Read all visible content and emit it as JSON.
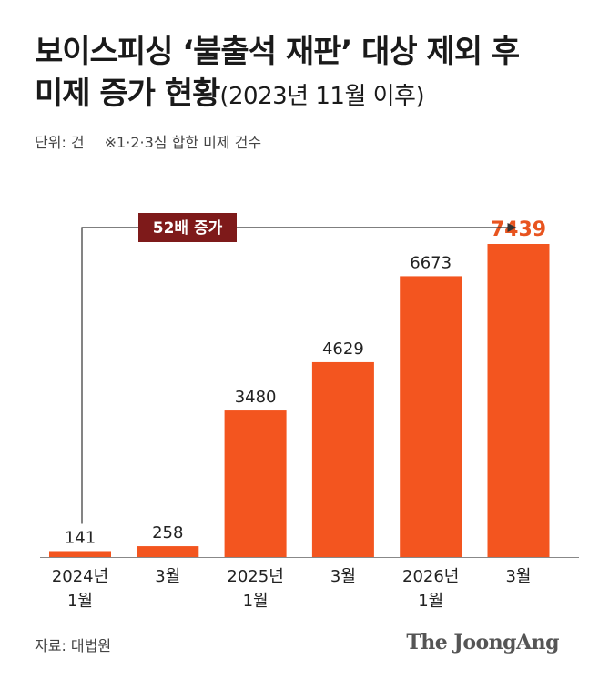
{
  "title": {
    "line1": "보이스피싱 ‘불출석 재판’ 대상 제외 후",
    "line2_main": "미제 증가 현황",
    "line2_sub": "(2023년 11월 이후)"
  },
  "unit_label": "단위: 건",
  "note": "※1·2·3심 합한 미제 건수",
  "source": "자료: 대법원",
  "logo": "The JoongAng",
  "colors": {
    "bar": "#f3551f",
    "highlight_label": "#e8541f",
    "badge_bg": "#7e1a1a",
    "badge_text": "#ffffff",
    "baseline": "#888888",
    "arrow": "#333333"
  },
  "chart_data": {
    "type": "bar",
    "categories": [
      [
        "2024년",
        "1월"
      ],
      [
        "3월"
      ],
      [
        "2025년",
        "1월"
      ],
      [
        "3월"
      ],
      [
        "2026년",
        "1월"
      ],
      [
        "3월"
      ]
    ],
    "values": [
      141,
      258,
      3480,
      4629,
      6673,
      7439
    ],
    "value_labels": [
      "141",
      "258",
      "3480",
      "4629",
      "6673",
      "7439"
    ],
    "highlight_index": 5,
    "annotation": "52배 증가",
    "ylim": [
      0,
      7439
    ],
    "grid": false
  }
}
